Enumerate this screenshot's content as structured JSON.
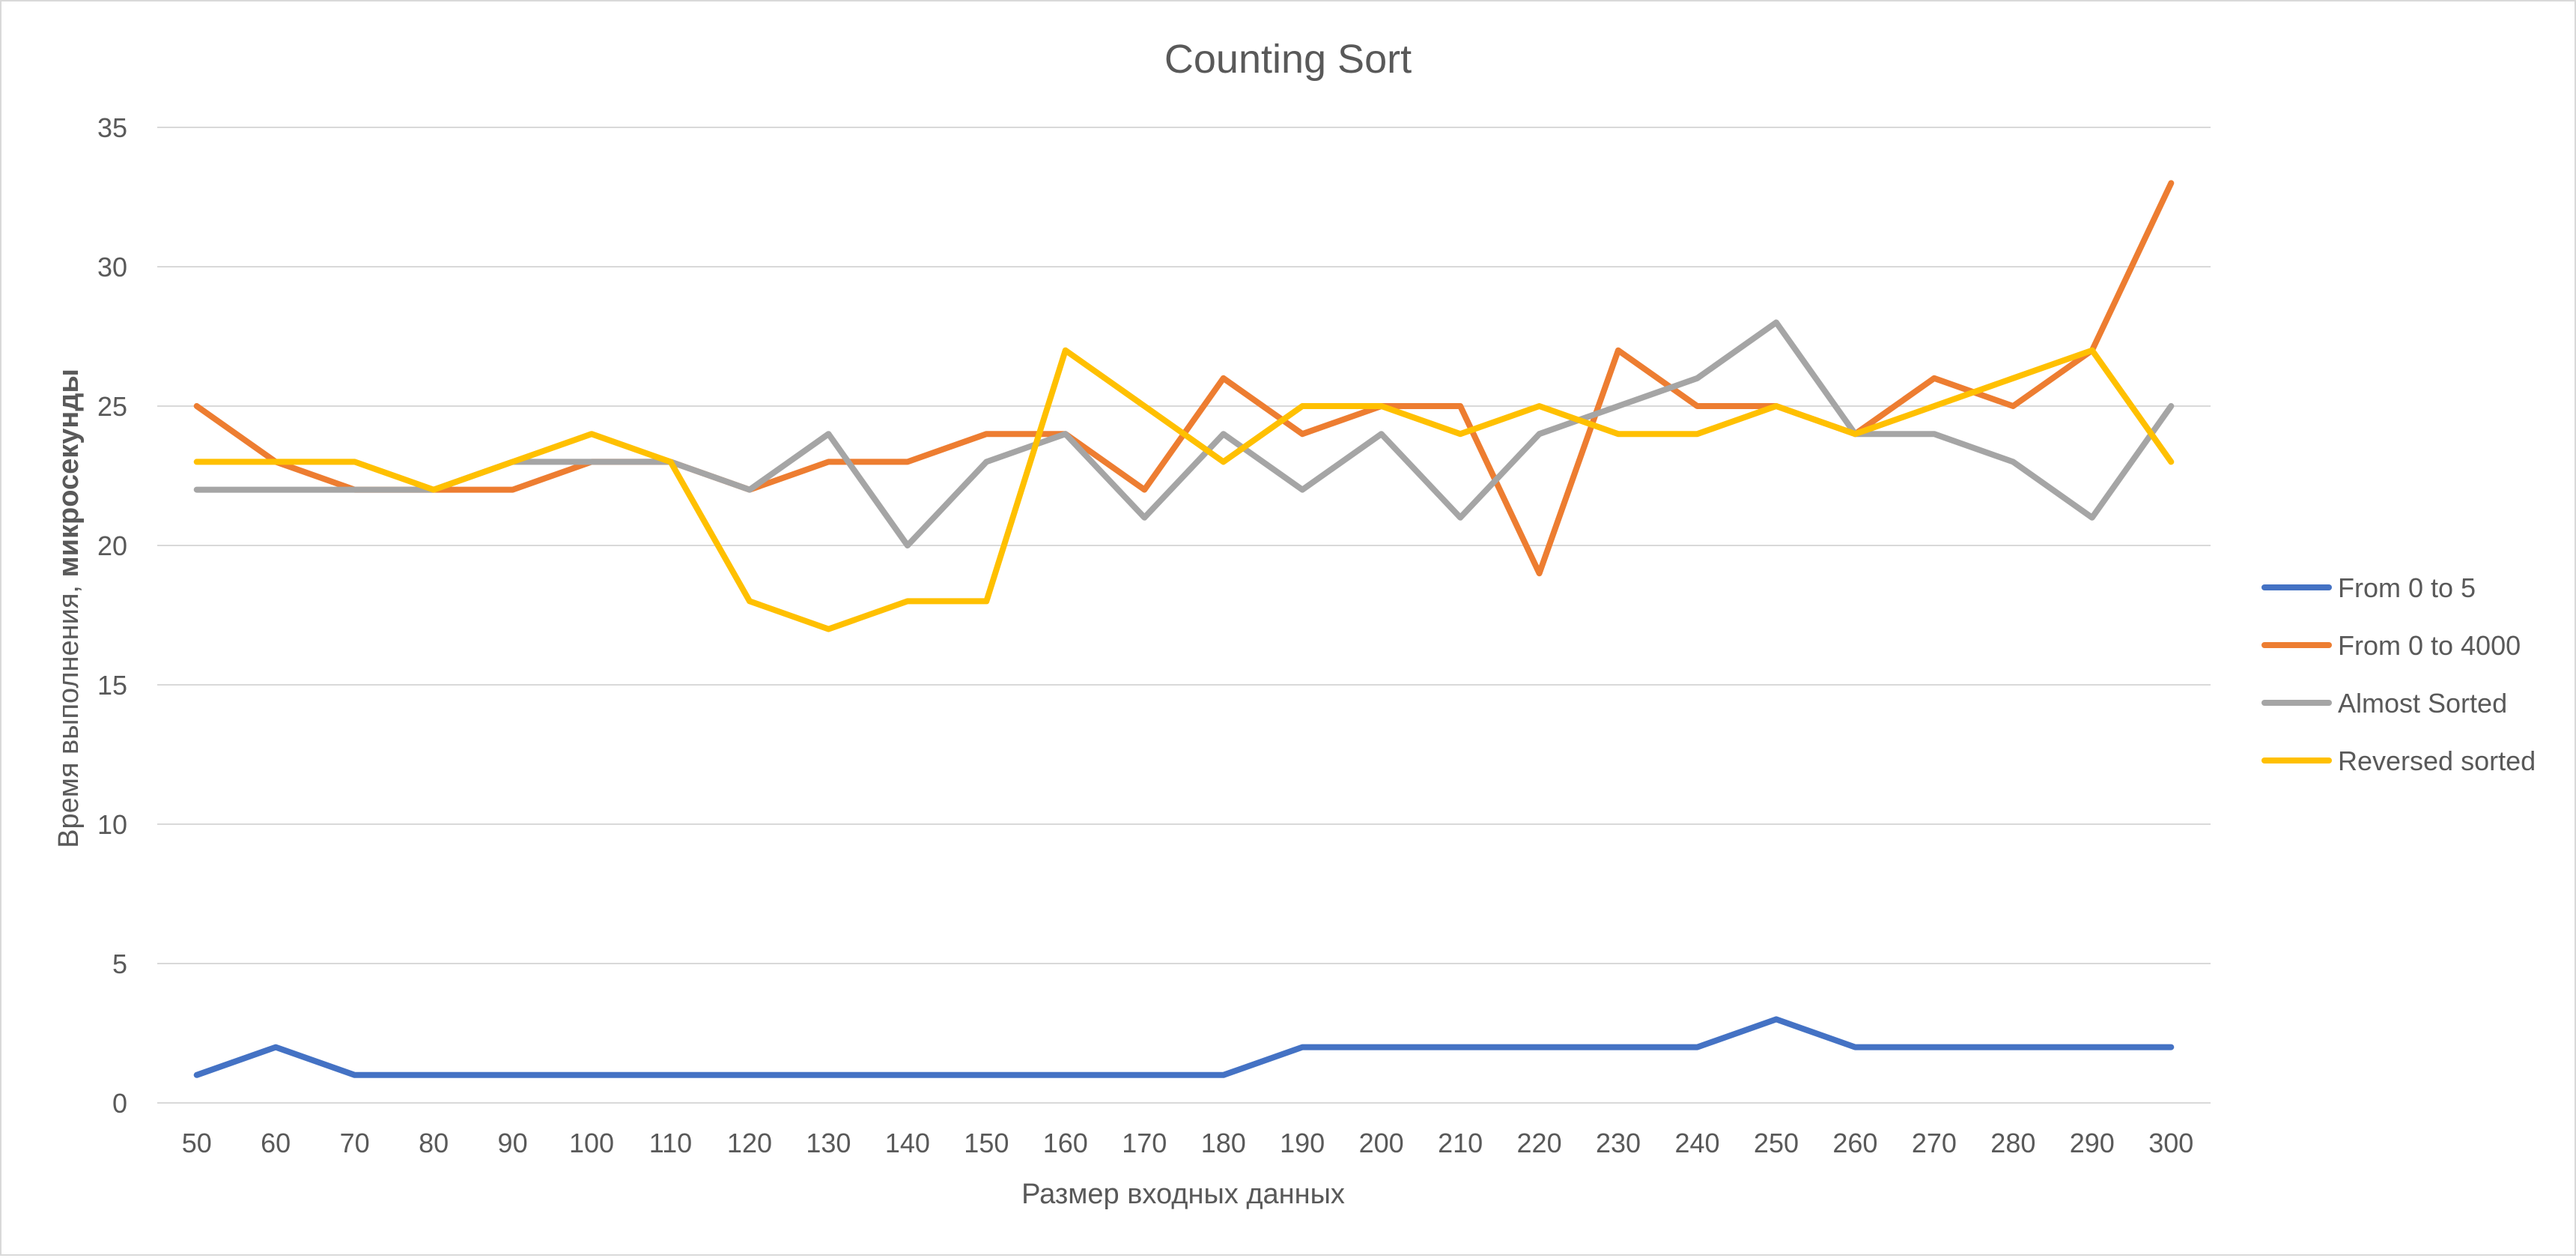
{
  "chart_data": {
    "type": "line",
    "title": "Counting Sort",
    "xlabel": "Размер входных данных",
    "ylabel_prefix": "Время выполнения, ",
    "ylabel_bold": "микросекунды",
    "x": [
      50,
      60,
      70,
      80,
      90,
      100,
      110,
      120,
      130,
      140,
      150,
      160,
      170,
      180,
      190,
      200,
      210,
      220,
      230,
      240,
      250,
      260,
      270,
      280,
      290,
      300
    ],
    "ylim": [
      0,
      35
    ],
    "yticks": [
      0,
      5,
      10,
      15,
      20,
      25,
      30,
      35
    ],
    "grid": true,
    "legend": "right",
    "series": [
      {
        "name": "From 0 to 5",
        "color": "#4472c4",
        "values": [
          1,
          2,
          1,
          1,
          1,
          1,
          1,
          1,
          1,
          1,
          1,
          1,
          1,
          1,
          2,
          2,
          2,
          2,
          2,
          2,
          3,
          2,
          2,
          2,
          2,
          2
        ]
      },
      {
        "name": "From 0 to 4000",
        "color": "#ed7d31",
        "values": [
          25,
          23,
          22,
          22,
          22,
          23,
          23,
          22,
          23,
          23,
          24,
          24,
          22,
          26,
          24,
          25,
          25,
          19,
          27,
          25,
          25,
          24,
          26,
          25,
          27,
          33
        ]
      },
      {
        "name": "Almost Sorted",
        "color": "#a5a5a5",
        "values": [
          22,
          22,
          22,
          22,
          23,
          23,
          23,
          22,
          24,
          20,
          23,
          24,
          21,
          24,
          22,
          24,
          21,
          24,
          25,
          26,
          28,
          24,
          24,
          23,
          21,
          25
        ]
      },
      {
        "name": "Reversed sorted",
        "color": "#ffc000",
        "values": [
          23,
          23,
          23,
          22,
          23,
          24,
          23,
          18,
          17,
          18,
          18,
          27,
          25,
          23,
          25,
          25,
          24,
          25,
          24,
          24,
          25,
          24,
          25,
          26,
          27,
          23
        ]
      }
    ]
  }
}
